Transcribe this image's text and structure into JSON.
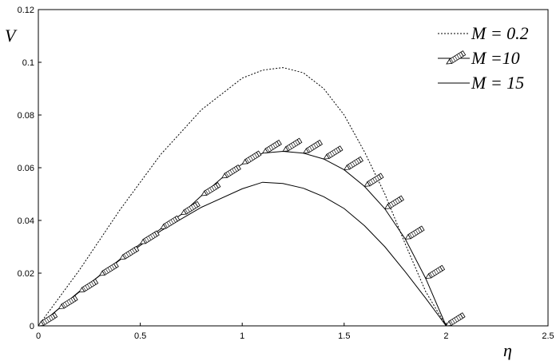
{
  "chart_data": {
    "type": "line",
    "xlabel": "η",
    "ylabel": "V",
    "xlim": [
      0,
      2.5
    ],
    "ylim": [
      0,
      0.12
    ],
    "xticks": [
      "0",
      "0.5",
      "1",
      "1.5",
      "2",
      "2.5"
    ],
    "yticks": [
      "0",
      "0.02",
      "0.04",
      "0.06",
      "0.08",
      "0.1",
      "0.12"
    ],
    "grid": false,
    "legend_position": "top-right",
    "series": [
      {
        "name": "M  = 0.2",
        "style": "dotted",
        "x": [
          0,
          0.2,
          0.4,
          0.6,
          0.8,
          1.0,
          1.1,
          1.2,
          1.3,
          1.4,
          1.5,
          1.6,
          1.7,
          1.8,
          1.9,
          2.0
        ],
        "y": [
          0,
          0.021,
          0.044,
          0.065,
          0.082,
          0.094,
          0.097,
          0.098,
          0.096,
          0.09,
          0.08,
          0.066,
          0.05,
          0.031,
          0.013,
          0
        ]
      },
      {
        "name": "M =10",
        "style": "solid-markers",
        "x": [
          0,
          0.1,
          0.2,
          0.3,
          0.4,
          0.5,
          0.6,
          0.7,
          0.8,
          0.9,
          1.0,
          1.1,
          1.2,
          1.3,
          1.4,
          1.5,
          1.6,
          1.7,
          1.8,
          1.9,
          2.0
        ],
        "y": [
          0,
          0.0065,
          0.0128,
          0.0191,
          0.0252,
          0.0311,
          0.0368,
          0.0422,
          0.0494,
          0.0561,
          0.0614,
          0.0655,
          0.0662,
          0.0655,
          0.0633,
          0.0592,
          0.0529,
          0.0444,
          0.0329,
          0.018,
          0
        ]
      },
      {
        "name": "M = 15",
        "style": "solid",
        "x": [
          0,
          0.2,
          0.4,
          0.6,
          0.8,
          1.0,
          1.1,
          1.2,
          1.3,
          1.4,
          1.5,
          1.6,
          1.7,
          1.8,
          1.9,
          2.0
        ],
        "y": [
          0,
          0.013,
          0.025,
          0.036,
          0.045,
          0.052,
          0.0545,
          0.054,
          0.0522,
          0.049,
          0.0445,
          0.038,
          0.03,
          0.0205,
          0.0105,
          0
        ]
      }
    ]
  }
}
